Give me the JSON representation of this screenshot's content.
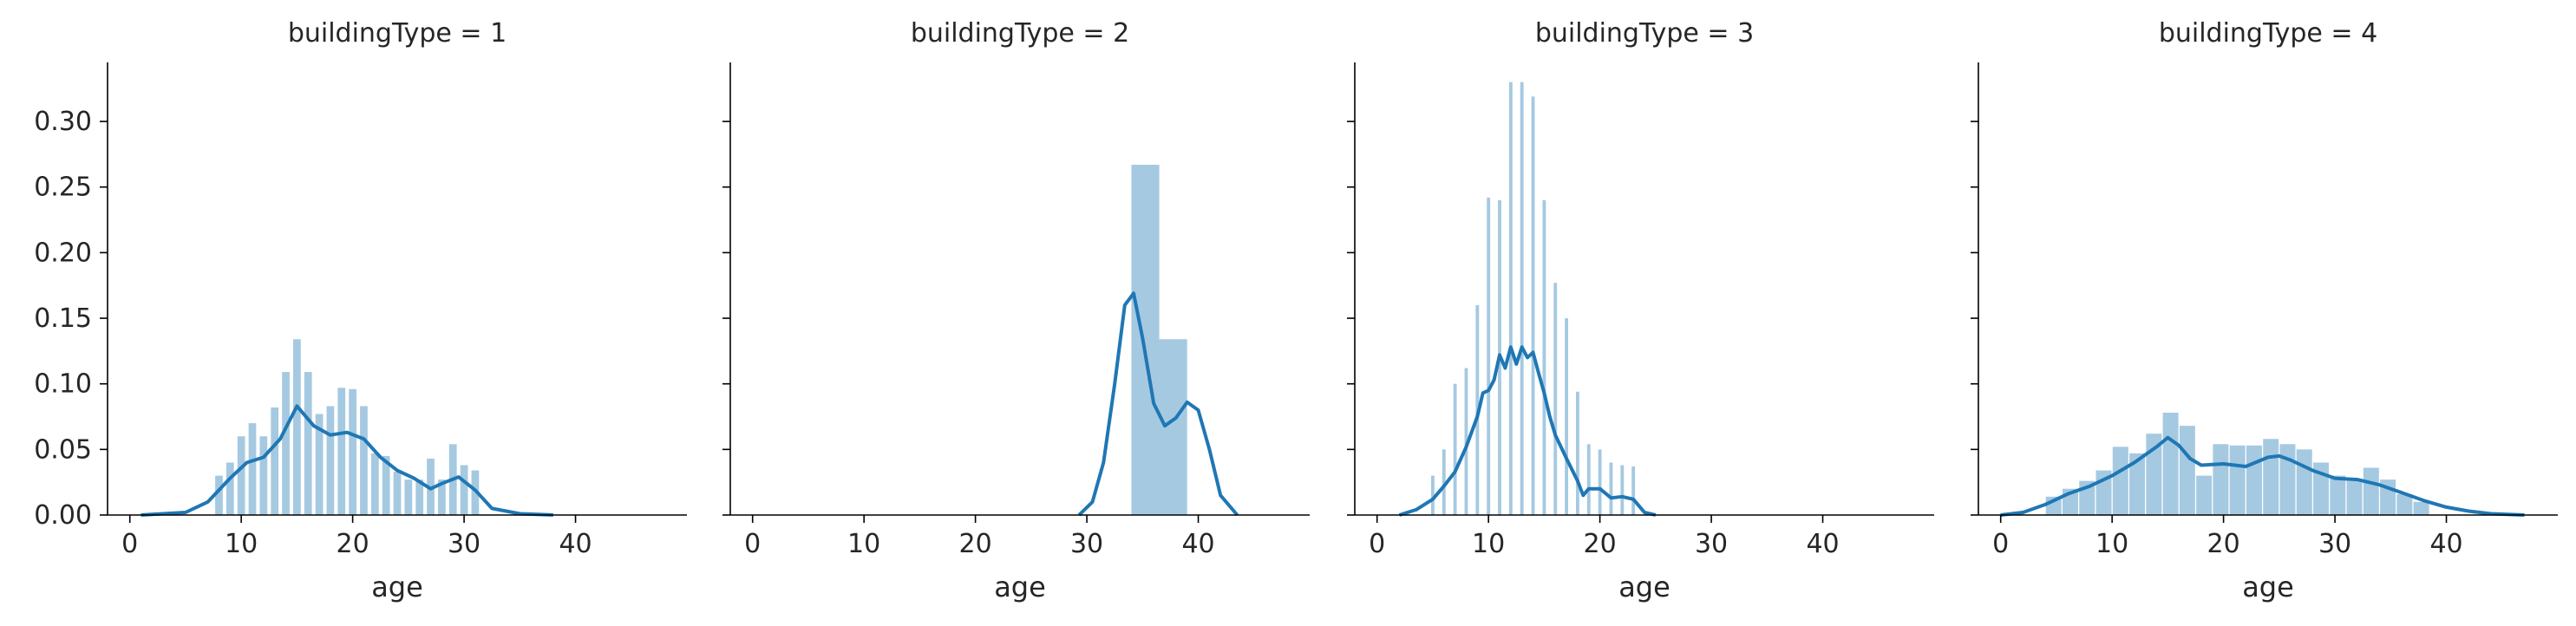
{
  "chart_data": [
    {
      "type": "bar",
      "title": "buildingType = 1",
      "xlabel": "age",
      "ylabel": "",
      "xlim": [
        -2,
        50
      ],
      "ylim": [
        0,
        0.345
      ],
      "xticks": [
        0,
        10,
        20,
        30,
        40
      ],
      "yticks": [
        0.0,
        0.05,
        0.1,
        0.15,
        0.2,
        0.25,
        0.3
      ],
      "ytick_labels": [
        "0.00",
        "0.05",
        "0.10",
        "0.15",
        "0.20",
        "0.25",
        "0.30"
      ],
      "hist": {
        "x": [
          8,
          9,
          10,
          11,
          12,
          13,
          14,
          15,
          16,
          17,
          18,
          19,
          20,
          21,
          22,
          23,
          24,
          25,
          26,
          27,
          28,
          29,
          30,
          31
        ],
        "values": [
          0.03,
          0.04,
          0.06,
          0.07,
          0.06,
          0.082,
          0.109,
          0.134,
          0.109,
          0.077,
          0.083,
          0.097,
          0.096,
          0.083,
          0.047,
          0.045,
          0.033,
          0.027,
          0.027,
          0.043,
          0.027,
          0.054,
          0.038,
          0.034
        ],
        "bin_width": 0.68
      },
      "kde": {
        "x": [
          1,
          5,
          7,
          9,
          10.5,
          12,
          13.5,
          15,
          16.5,
          18,
          19.5,
          21,
          22.5,
          24,
          25.5,
          27,
          28,
          29.5,
          31,
          32.5,
          35,
          38
        ],
        "y": [
          0.0,
          0.002,
          0.01,
          0.028,
          0.04,
          0.044,
          0.058,
          0.083,
          0.068,
          0.061,
          0.063,
          0.058,
          0.044,
          0.034,
          0.028,
          0.02,
          0.024,
          0.029,
          0.019,
          0.005,
          0.001,
          0.0
        ]
      }
    },
    {
      "type": "bar",
      "title": "buildingType = 2",
      "xlabel": "age",
      "ylabel": "",
      "xlim": [
        -2,
        50
      ],
      "ylim": [
        0,
        0.345
      ],
      "xticks": [
        0,
        10,
        20,
        30,
        40
      ],
      "yticks": [
        0.0,
        0.05,
        0.1,
        0.15,
        0.2,
        0.25,
        0.3
      ],
      "ytick_labels": [
        "",
        "",
        "",
        "",
        "",
        "",
        ""
      ],
      "hist": {
        "x": [
          35.25,
          37.75
        ],
        "values": [
          0.267,
          0.134
        ],
        "bin_width": 2.5
      },
      "kde": {
        "x": [
          29.3,
          30.5,
          31.5,
          32.5,
          33.4,
          34.2,
          35.0,
          36.0,
          37.0,
          38.0,
          39.0,
          40.0,
          41.0,
          42.0,
          43.5
        ],
        "y": [
          0.0,
          0.01,
          0.04,
          0.1,
          0.16,
          0.169,
          0.135,
          0.085,
          0.068,
          0.074,
          0.086,
          0.08,
          0.05,
          0.015,
          0.0
        ]
      }
    },
    {
      "type": "bar",
      "title": "buildingType = 3",
      "xlabel": "age",
      "ylabel": "",
      "xlim": [
        -2,
        50
      ],
      "ylim": [
        0,
        0.345
      ],
      "xticks": [
        0,
        10,
        20,
        30,
        40
      ],
      "yticks": [
        0.0,
        0.05,
        0.1,
        0.15,
        0.2,
        0.25,
        0.3
      ],
      "ytick_labels": [
        "",
        "",
        "",
        "",
        "",
        "",
        ""
      ],
      "hist": {
        "x": [
          5,
          6,
          7,
          8,
          9,
          10,
          11,
          12,
          13,
          14,
          15,
          16,
          17,
          18,
          19,
          20,
          21,
          22,
          23
        ],
        "values": [
          0.03,
          0.05,
          0.1,
          0.112,
          0.16,
          0.242,
          0.24,
          0.33,
          0.33,
          0.319,
          0.24,
          0.177,
          0.15,
          0.094,
          0.054,
          0.05,
          0.04,
          0.038,
          0.037
        ],
        "bin_width": 0.3
      },
      "kde": {
        "x": [
          2,
          3.5,
          5,
          6,
          7,
          8,
          9,
          9.5,
          10,
          10.5,
          11,
          11.5,
          12,
          12.5,
          13,
          13.5,
          14,
          14.5,
          15,
          15.5,
          16,
          17,
          18,
          18.5,
          19,
          20,
          21,
          22,
          23,
          24,
          25
        ],
        "y": [
          0.0,
          0.004,
          0.012,
          0.022,
          0.033,
          0.052,
          0.075,
          0.093,
          0.095,
          0.103,
          0.122,
          0.112,
          0.128,
          0.115,
          0.128,
          0.12,
          0.124,
          0.108,
          0.093,
          0.075,
          0.061,
          0.043,
          0.026,
          0.015,
          0.02,
          0.02,
          0.013,
          0.014,
          0.012,
          0.002,
          0.0
        ]
      }
    },
    {
      "type": "bar",
      "title": "buildingType = 4",
      "xlabel": "age",
      "ylabel": "",
      "xlim": [
        -2,
        50
      ],
      "ylim": [
        0,
        0.345
      ],
      "xticks": [
        0,
        10,
        20,
        30,
        40
      ],
      "yticks": [
        0.0,
        0.05,
        0.1,
        0.15,
        0.2,
        0.25,
        0.3
      ],
      "ytick_labels": [
        "",
        "",
        "",
        "",
        "",
        "",
        ""
      ],
      "hist": {
        "x": [
          4.75,
          6.25,
          7.75,
          9.25,
          10.75,
          12.25,
          13.75,
          15.25,
          16.75,
          18.25,
          19.75,
          21.25,
          22.75,
          24.25,
          25.75,
          27.25,
          28.75,
          30.25,
          31.75,
          33.25,
          34.75,
          36.25,
          37.75
        ],
        "values": [
          0.014,
          0.02,
          0.026,
          0.034,
          0.052,
          0.047,
          0.062,
          0.078,
          0.068,
          0.03,
          0.054,
          0.053,
          0.053,
          0.058,
          0.054,
          0.05,
          0.04,
          0.03,
          0.026,
          0.036,
          0.027,
          0.016,
          0.01
        ],
        "bin_width": 1.4
      },
      "kde": {
        "x": [
          0,
          2,
          4,
          6,
          8,
          10,
          12,
          14,
          15,
          16,
          17,
          18,
          20,
          22,
          24,
          25,
          26,
          28,
          30,
          32,
          34,
          36,
          38,
          40,
          42,
          44,
          47
        ],
        "y": [
          0.0,
          0.002,
          0.008,
          0.016,
          0.022,
          0.03,
          0.04,
          0.052,
          0.059,
          0.053,
          0.043,
          0.038,
          0.039,
          0.037,
          0.044,
          0.045,
          0.042,
          0.034,
          0.028,
          0.027,
          0.023,
          0.017,
          0.011,
          0.006,
          0.003,
          0.001,
          0.0
        ]
      }
    }
  ]
}
